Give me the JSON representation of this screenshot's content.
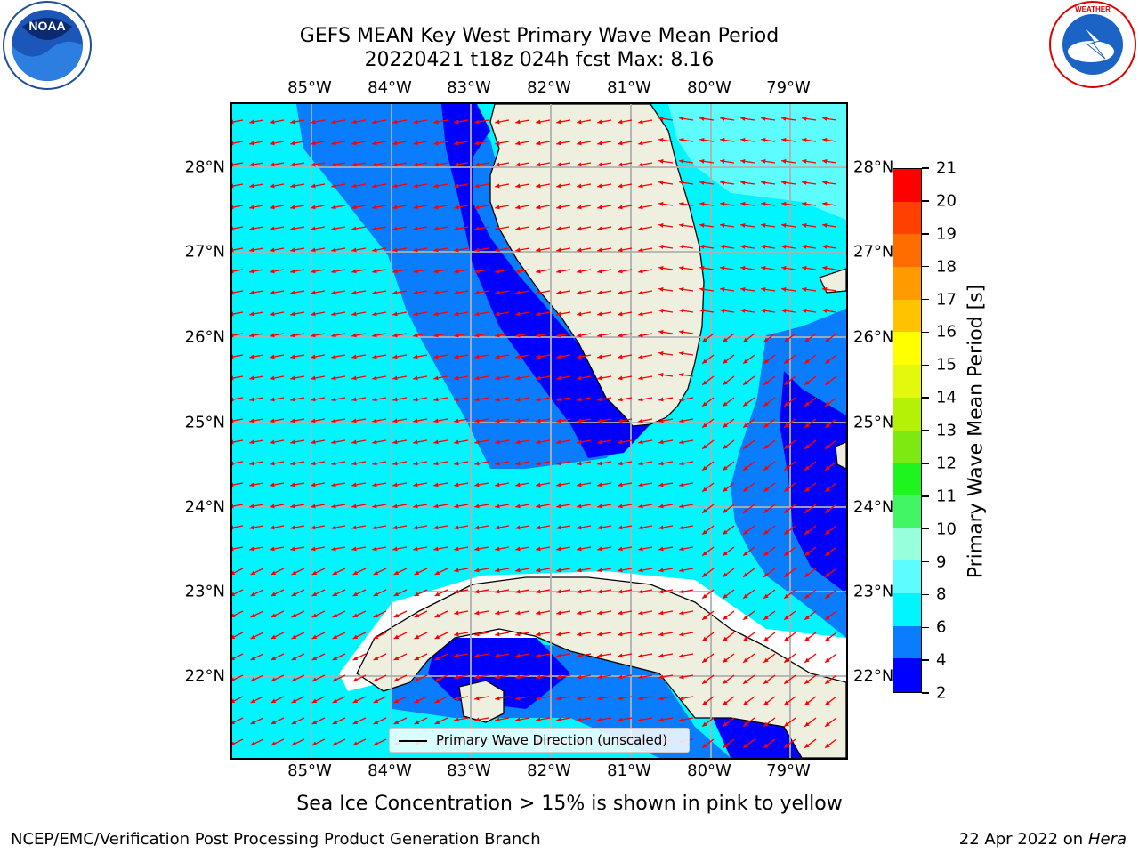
{
  "title_line1": "GEFS MEAN Key West Primary Wave Mean Period",
  "title_line2": "20220421 t18z 024h fcst   Max: 8.16",
  "lon_ticks": [
    "85°W",
    "84°W",
    "83°W",
    "82°W",
    "81°W",
    "80°W",
    "79°W"
  ],
  "lat_ticks": [
    "28°N",
    "27°N",
    "26°N",
    "25°N",
    "24°N",
    "23°N",
    "22°N"
  ],
  "colorbar": {
    "label": "Primary Wave Mean Period [s]",
    "ticks": [
      "2",
      "4",
      "6",
      "8",
      "9",
      "10",
      "11",
      "12",
      "13",
      "14",
      "15",
      "16",
      "17",
      "18",
      "19",
      "20",
      "21"
    ],
    "colors": [
      "#0000ff",
      "#0a7dff",
      "#00f5ff",
      "#5cfcff",
      "#98ffdd",
      "#41f565",
      "#1ef51e",
      "#7de910",
      "#b5f007",
      "#e3f80c",
      "#ffff00",
      "#ffc300",
      "#ff9b00",
      "#ff6d00",
      "#ff4000",
      "#ff0000"
    ]
  },
  "legend": "Primary Wave Direction (unscaled)",
  "subtitle": "Sea Ice Concentration > 15% is shown in pink to yellow",
  "footer_left": "NCEP/EMC/Verification Post Processing Product Generation Branch",
  "footer_date": "22 Apr 2022 on ",
  "footer_machine": "Hera",
  "logos": {
    "left": "noaa-logo",
    "right": "national-weather-service-logo"
  },
  "map_colors": {
    "land": "#efefdf",
    "ocean_6_8": "#00f5ff",
    "ocean_4_6": "#0a7dff",
    "ocean_2_4": "#0000ff",
    "ocean_8_9": "#5cfcff",
    "arrow": "#ff0000",
    "grid": "#b0b0b0"
  }
}
